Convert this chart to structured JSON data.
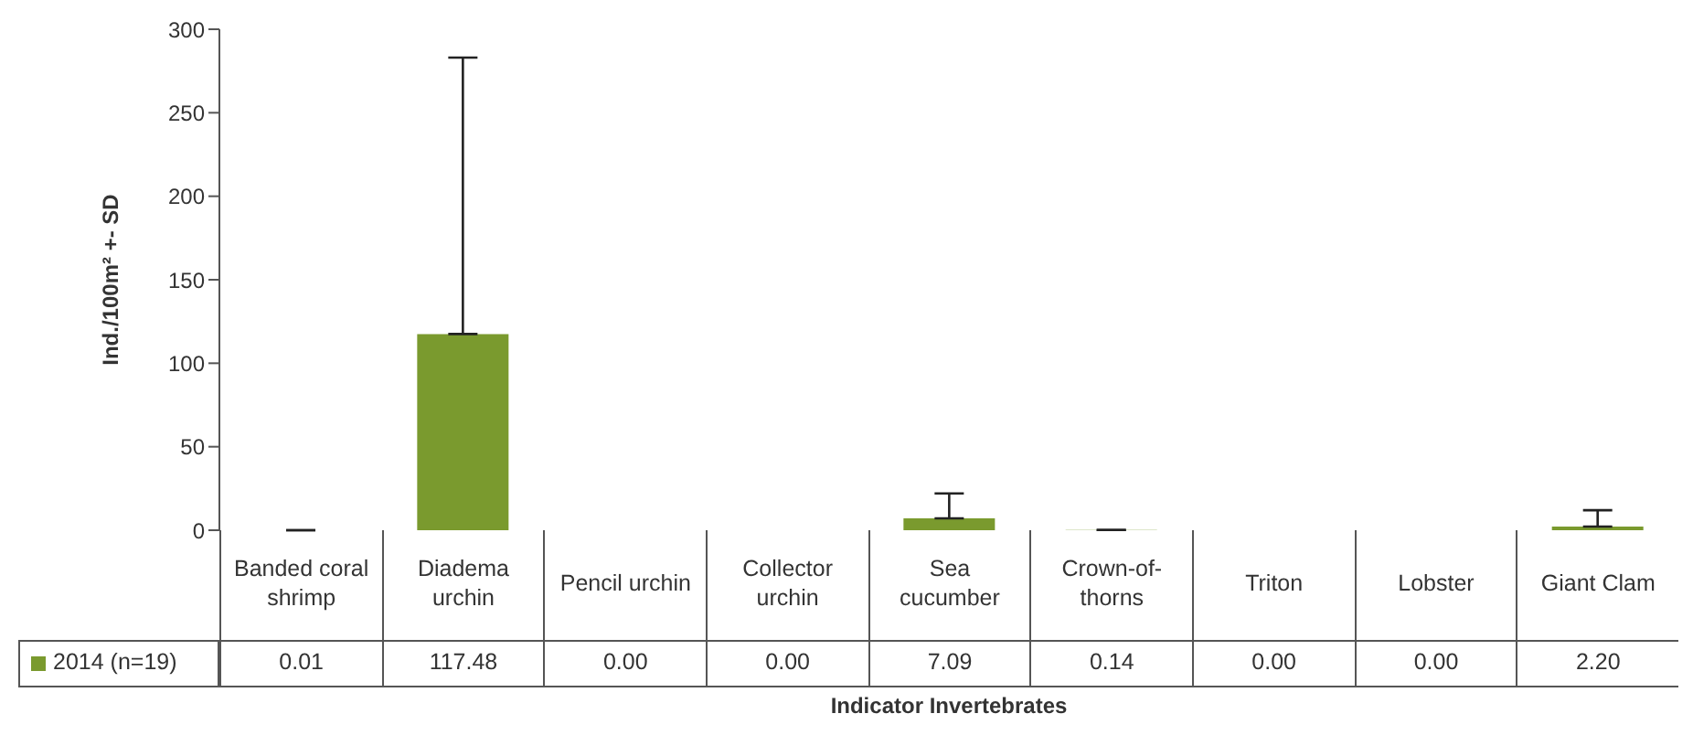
{
  "chart_data": {
    "type": "bar",
    "xlabel": "Indicator Invertebrates",
    "ylabel": "Ind./100m² +- SD",
    "categories": [
      "Banded coral shrimp",
      "Diadema urchin",
      "Pencil urchin",
      "Collector urchin",
      "Sea cucumber",
      "Crown-of-thorns",
      "Triton",
      "Lobster",
      "Giant Clam"
    ],
    "series": [
      {
        "name": "2014 (n=19)",
        "color": "#7a9a2e",
        "values": [
          0.01,
          117.48,
          0,
          0,
          7.09,
          0.14,
          0,
          0,
          2.2
        ],
        "value_labels": [
          "0.01",
          "117.48",
          "0.00",
          "0.00",
          "7.09",
          "0.14",
          "0.00",
          "0.00",
          "2.20"
        ],
        "errors": [
          null,
          [
            117.48,
            283
          ],
          null,
          null,
          [
            7.09,
            22
          ],
          null,
          null,
          null,
          [
            2.2,
            12
          ]
        ]
      }
    ],
    "ylim": [
      0,
      300
    ],
    "yticks": [
      0,
      50,
      100,
      150,
      200,
      250,
      300
    ],
    "grid": false,
    "legend": "bottom"
  }
}
